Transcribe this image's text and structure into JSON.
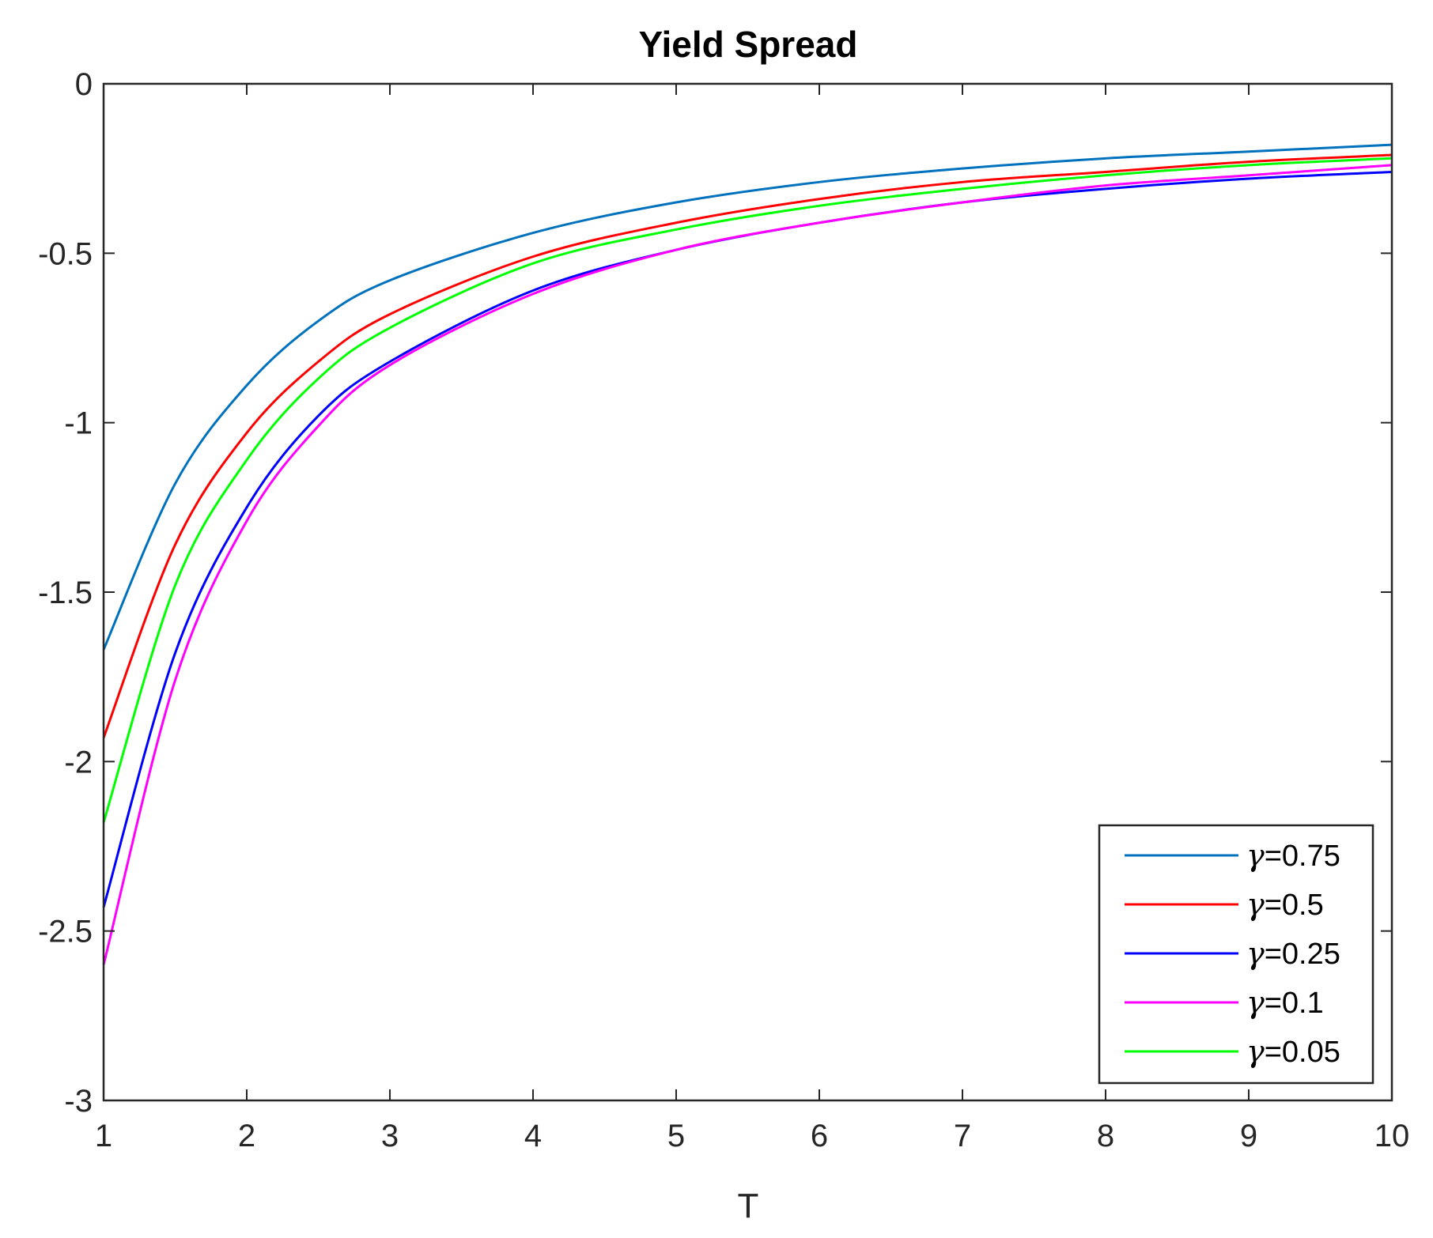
{
  "chart_data": {
    "type": "line",
    "title": "Yield Spread",
    "xlabel": "T",
    "ylabel": "",
    "xlim": [
      1,
      10
    ],
    "ylim": [
      -3,
      0
    ],
    "x_ticks": [
      1,
      2,
      3,
      4,
      5,
      6,
      7,
      8,
      9,
      10
    ],
    "x_tick_labels": [
      "1",
      "2",
      "3",
      "4",
      "5",
      "6",
      "7",
      "8",
      "9",
      "10"
    ],
    "y_ticks": [
      0,
      -0.5,
      -1,
      -1.5,
      -2,
      -2.5,
      -3
    ],
    "y_tick_labels": [
      "0",
      "-0.5",
      "-1",
      "-1.5",
      "-2",
      "-2.5",
      "-3"
    ],
    "grid": false,
    "legend_position": "bottom-right",
    "x": [
      1,
      1.5,
      2,
      2.5,
      3,
      4,
      5,
      6,
      7,
      8,
      9,
      10
    ],
    "series": [
      {
        "name": "γ=0.75",
        "symbol": "γ",
        "value_text": "=0.75",
        "color": "#0072BD",
        "values": [
          -1.67,
          -1.18,
          -0.89,
          -0.7,
          -0.58,
          -0.44,
          -0.35,
          -0.29,
          -0.25,
          -0.22,
          -0.2,
          -0.18
        ]
      },
      {
        "name": "γ=0.5",
        "symbol": "γ",
        "value_text": "=0.5",
        "color": "#FF0000",
        "values": [
          -1.93,
          -1.36,
          -1.03,
          -0.82,
          -0.68,
          -0.51,
          -0.41,
          -0.34,
          -0.29,
          -0.26,
          -0.23,
          -0.21
        ]
      },
      {
        "name": "γ=0.25",
        "symbol": "γ",
        "value_text": "=0.25",
        "color": "#0000FF",
        "values": [
          -2.43,
          -1.68,
          -1.25,
          -0.98,
          -0.82,
          -0.61,
          -0.49,
          -0.41,
          -0.35,
          -0.31,
          -0.28,
          -0.26
        ]
      },
      {
        "name": "γ=0.1",
        "symbol": "γ",
        "value_text": "=0.1",
        "color": "#FF00FF",
        "values": [
          -2.6,
          -1.76,
          -1.29,
          -1.01,
          -0.83,
          -0.62,
          -0.49,
          -0.41,
          -0.35,
          -0.3,
          -0.27,
          -0.24
        ]
      },
      {
        "name": "γ=0.05",
        "symbol": "γ",
        "value_text": "=0.05",
        "color": "#00FF00",
        "values": [
          -2.18,
          -1.48,
          -1.11,
          -0.87,
          -0.72,
          -0.53,
          -0.43,
          -0.36,
          -0.31,
          -0.27,
          -0.24,
          -0.22
        ]
      }
    ]
  }
}
